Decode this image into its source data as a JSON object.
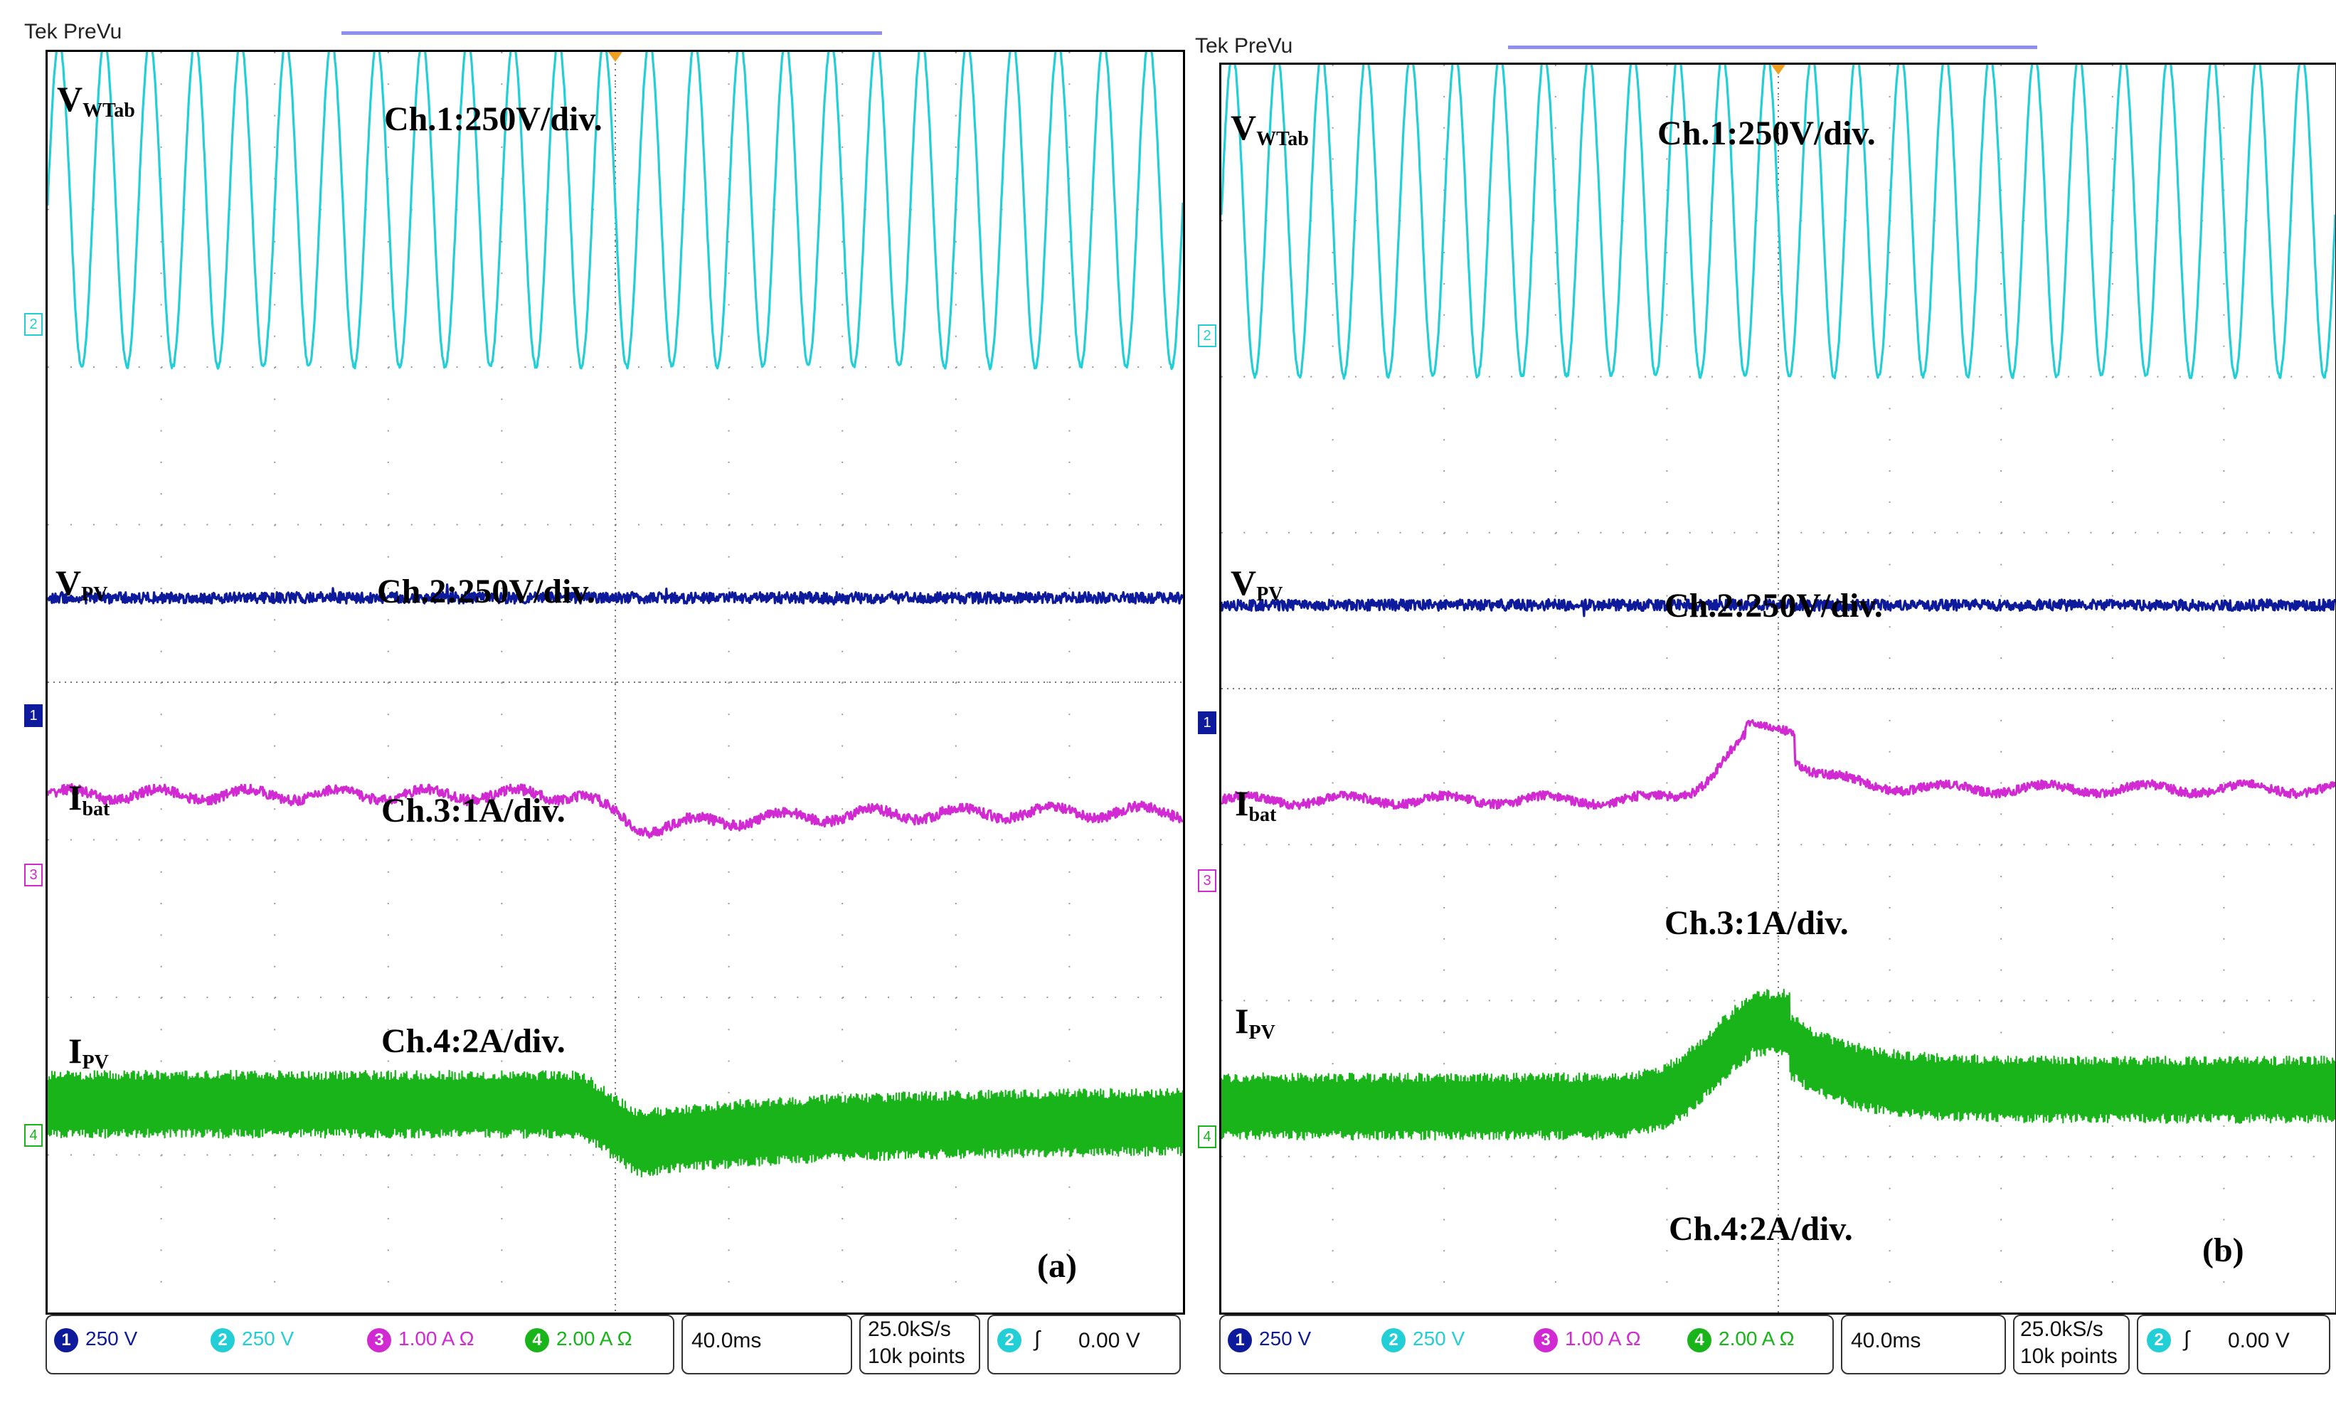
{
  "colors": {
    "ch1": "#0d1a9c",
    "ch2": "#22cfd6",
    "ch3": "#d22ad2",
    "ch4": "#18b41a",
    "grid": "#9a9a9a"
  },
  "panels": [
    {
      "id": "a",
      "brand": "Tek PreVu",
      "label": "(a)",
      "signals": {
        "vwt": {
          "main": "V",
          "sub": "WTab"
        },
        "vpv": {
          "main": "V",
          "sub": "PV"
        },
        "ibat": {
          "main": "I",
          "sub": "bat"
        },
        "ipv": {
          "main": "I",
          "sub": "PV"
        }
      },
      "scales": {
        "ch1": "Ch.1:250V/div.",
        "ch2": "Ch.2:250V/div.",
        "ch3": "Ch.3:1A/div.",
        "ch4": "Ch.4:2A/div."
      },
      "markers": {
        "m2": "2",
        "m1": "1",
        "m3": "3",
        "m4": "4"
      },
      "status": {
        "ch1": {
          "num": "1",
          "val": "250 V"
        },
        "ch2": {
          "num": "2",
          "val": "250 V"
        },
        "ch3": {
          "num": "3",
          "val": "1.00 A Ω"
        },
        "ch4": {
          "num": "4",
          "val": "2.00 A Ω"
        },
        "timebase": "40.0ms",
        "rate": "25.0kS/s",
        "points": "10k points",
        "trig_ch": "2",
        "trig_sym": "∫",
        "trig_level": "0.00 V"
      }
    },
    {
      "id": "b",
      "brand": "Tek PreVu",
      "label": "(b)",
      "signals": {
        "vwt": {
          "main": "V",
          "sub": "WTab"
        },
        "vpv": {
          "main": "V",
          "sub": "PV"
        },
        "ibat": {
          "main": "I",
          "sub": "bat"
        },
        "ipv": {
          "main": "I",
          "sub": "PV"
        }
      },
      "scales": {
        "ch1": "Ch.1:250V/div.",
        "ch2": "Ch.2:250V/div.",
        "ch3": "Ch.3:1A/div.",
        "ch4": "Ch.4:2A/div."
      },
      "markers": {
        "m2": "2",
        "m1": "1",
        "m3": "3",
        "m4": "4"
      },
      "status": {
        "ch1": {
          "num": "1",
          "val": "250 V"
        },
        "ch2": {
          "num": "2",
          "val": "250 V"
        },
        "ch3": {
          "num": "3",
          "val": "1.00 A Ω"
        },
        "ch4": {
          "num": "4",
          "val": "2.00 A Ω"
        },
        "timebase": "40.0ms",
        "rate": "25.0kS/s",
        "points": "10k points",
        "trig_ch": "2",
        "trig_sym": "∫",
        "trig_level": "0.00 V"
      }
    }
  ],
  "chart_data": [
    {
      "type": "line",
      "title": "(a)",
      "x_divisions": 10,
      "y_divisions": 8,
      "time_per_div_ms": 40,
      "series": [
        {
          "name": "V_WTab",
          "channel": "Ch.1",
          "scale": "250V/div",
          "waveform": "sinusoid",
          "cycles": 25,
          "amplitude_div": 1.45,
          "offset_div": 0
        },
        {
          "name": "V_PV",
          "channel": "Ch.2",
          "scale": "250V/div",
          "waveform": "dc-noise",
          "level_div": 0.0,
          "noise_div": 0.05
        },
        {
          "name": "I_bat",
          "channel": "Ch.3",
          "scale": "1A/div",
          "waveform": "dc-step",
          "step_time_div": 5.0,
          "step_div": -0.3,
          "recover_div": 0.15
        },
        {
          "name": "I_PV",
          "channel": "Ch.4",
          "scale": "2A/div",
          "waveform": "ripple-step",
          "step_time_div": 5.0,
          "step_div": -0.35,
          "recover_div": 0.2,
          "ripple_div": 0.3
        }
      ]
    },
    {
      "type": "line",
      "title": "(b)",
      "x_divisions": 10,
      "y_divisions": 8,
      "time_per_div_ms": 40,
      "series": [
        {
          "name": "V_WTab",
          "channel": "Ch.1",
          "scale": "250V/div",
          "waveform": "sinusoid",
          "cycles": 25,
          "amplitude_div": 1.45,
          "offset_div": 0
        },
        {
          "name": "V_PV",
          "channel": "Ch.2",
          "scale": "250V/div",
          "waveform": "dc-noise",
          "level_div": 0.0,
          "noise_div": 0.05
        },
        {
          "name": "I_bat",
          "channel": "Ch.3",
          "scale": "1A/div",
          "waveform": "bump",
          "peak_time_div": 4.9,
          "peak_div": 0.65,
          "settle_div": 0.1
        },
        {
          "name": "I_PV",
          "channel": "Ch.4",
          "scale": "2A/div",
          "waveform": "ripple-bump",
          "peak_time_div": 4.9,
          "peak_div": 0.75,
          "settle_div": 0.15,
          "ripple_div": 0.3
        }
      ]
    }
  ]
}
